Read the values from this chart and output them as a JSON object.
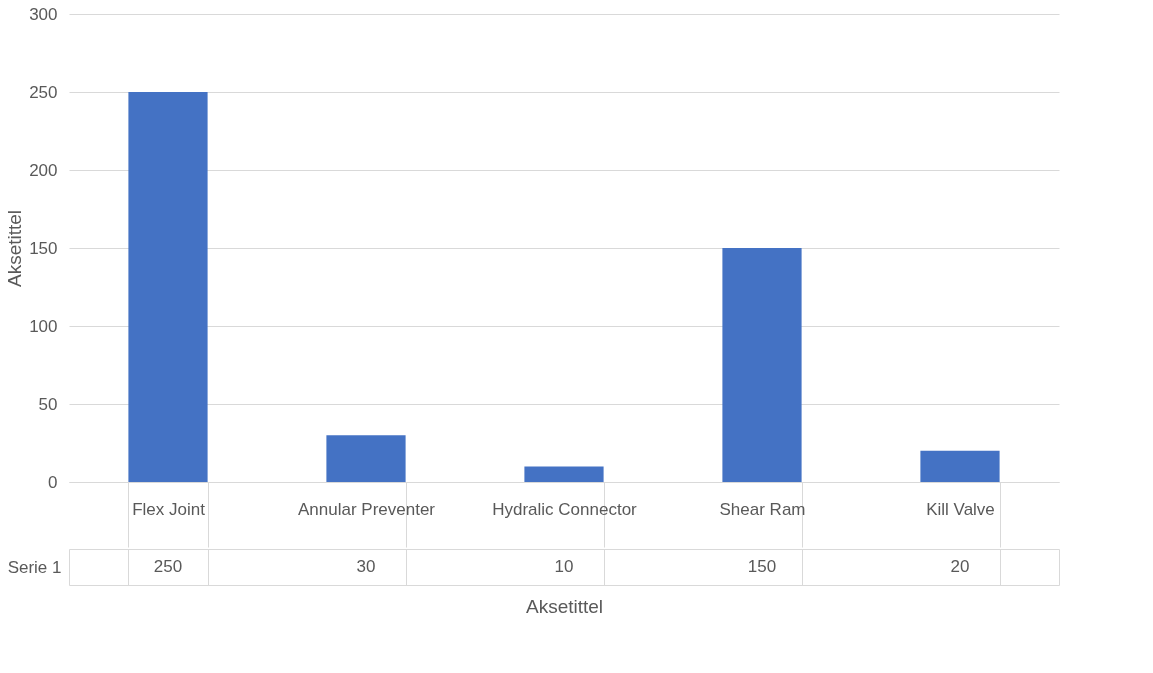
{
  "chart_data": {
    "type": "bar",
    "categories": [
      "Flex Joint",
      "Annular Preventer",
      "Hydralic Connector",
      "Shear Ram",
      "Kill Valve"
    ],
    "series": [
      {
        "name": "Serie 1",
        "color": "#4472c4",
        "values": [
          250,
          30,
          10,
          150,
          20
        ]
      }
    ],
    "ylim": [
      0,
      300
    ],
    "yticks": [
      0,
      50,
      100,
      150,
      200,
      250,
      300
    ],
    "grid": "y",
    "data_labels": true,
    "xlabel": "Aksetittel",
    "ylabel": "Aksetittel"
  }
}
